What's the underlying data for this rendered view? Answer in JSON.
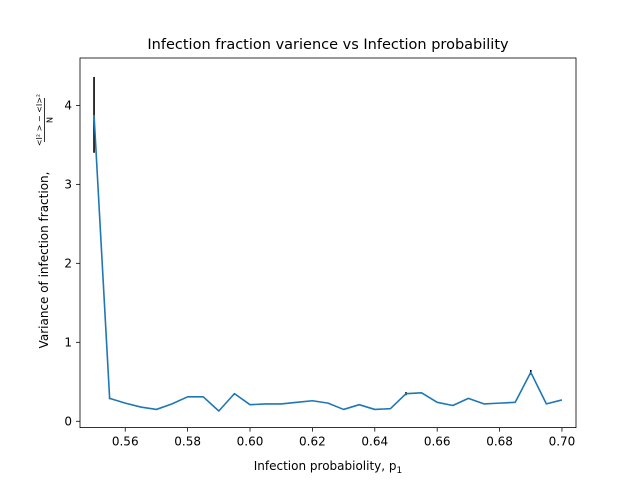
{
  "chart_data": {
    "type": "line",
    "title": "Infection fraction varience vs Infection probability",
    "xlabel": "Infection probabiolity, p",
    "xlabel_subscript": "1",
    "ylabel": "Variance of infection fraction,",
    "ylabel_fraction_numerator": "<I² > − <I>²",
    "ylabel_fraction_denominator": "N",
    "xlim": [
      0.5455,
      0.7045
    ],
    "ylim": [
      -0.08,
      4.6
    ],
    "xticks": [
      0.56,
      0.58,
      0.6,
      0.62,
      0.64,
      0.66,
      0.68,
      0.7
    ],
    "xtick_labels": [
      "0.56",
      "0.58",
      "0.60",
      "0.62",
      "0.64",
      "0.66",
      "0.68",
      "0.70"
    ],
    "yticks": [
      0,
      1,
      2,
      3,
      4
    ],
    "ytick_labels": [
      "0",
      "1",
      "2",
      "3",
      "4"
    ],
    "grid": false,
    "series": [
      {
        "color": "#1f77b4",
        "x": [
          0.55,
          0.555,
          0.56,
          0.565,
          0.57,
          0.575,
          0.58,
          0.585,
          0.59,
          0.595,
          0.6,
          0.605,
          0.61,
          0.615,
          0.62,
          0.625,
          0.63,
          0.635,
          0.64,
          0.645,
          0.65,
          0.655,
          0.66,
          0.665,
          0.67,
          0.675,
          0.68,
          0.685,
          0.69,
          0.695,
          0.7
        ],
        "y": [
          3.88,
          0.29,
          0.23,
          0.18,
          0.15,
          0.22,
          0.31,
          0.31,
          0.13,
          0.35,
          0.21,
          0.22,
          0.22,
          0.24,
          0.26,
          0.23,
          0.15,
          0.21,
          0.15,
          0.16,
          0.35,
          0.36,
          0.24,
          0.2,
          0.29,
          0.22,
          0.23,
          0.24,
          0.62,
          0.22,
          0.27
        ],
        "yerr": [
          0.48,
          0.01,
          0.0,
          0.0,
          0.0,
          0.0,
          0.0,
          0.0,
          0.0,
          0.0,
          0.0,
          0.0,
          0.0,
          0.0,
          0.0,
          0.0,
          0.0,
          0.0,
          0.0,
          0.0,
          0.02,
          0.0,
          0.0,
          0.0,
          0.0,
          0.0,
          0.0,
          0.0,
          0.03,
          0.0,
          0.0
        ],
        "errorbar_color": "#000000"
      }
    ]
  }
}
